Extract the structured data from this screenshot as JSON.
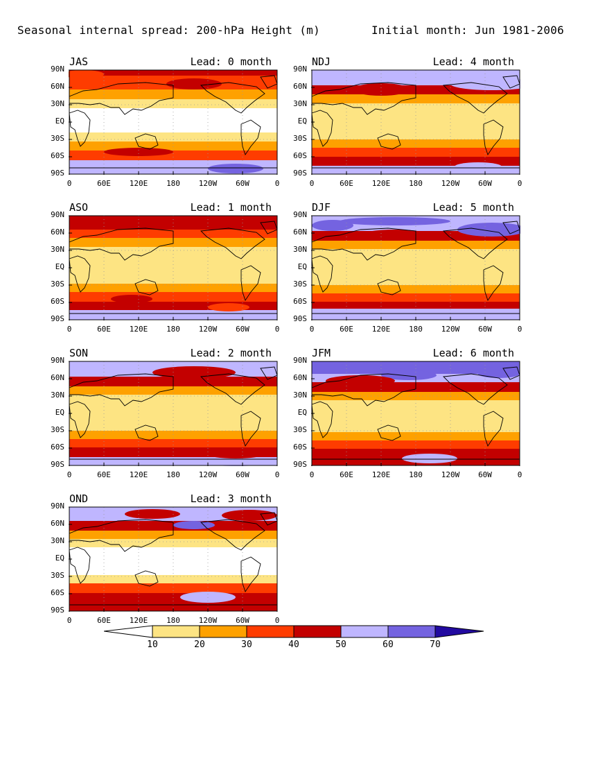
{
  "title_left": "Seasonal internal spread: 200-hPa Height (m)",
  "title_right": "Initial month: Jun 1981-2006",
  "lead_format": "Lead: {n} month",
  "y_ticks": [
    "90N",
    "60N",
    "30N",
    "EQ",
    "30S",
    "60S",
    "90S"
  ],
  "x_ticks": [
    "0",
    "60E",
    "120E",
    "180",
    "120W",
    "60W",
    "0"
  ],
  "colors": {
    "lt10": "#ffffff",
    "c10_20": "#fde483",
    "c20_30": "#fea100",
    "c30_40": "#fe3c00",
    "c40_50": "#c30000",
    "c50_60": "#bfb6ff",
    "c60_70": "#7463e0",
    "gt70": "#220aa0",
    "coast": "#000000",
    "grid": "#999999"
  },
  "colorbar": {
    "levels": [
      "10",
      "20",
      "30",
      "40",
      "50",
      "60",
      "70"
    ]
  },
  "panels": [
    {
      "season": "JAS",
      "lead": "0"
    },
    {
      "season": "NDJ",
      "lead": "4"
    },
    {
      "season": "ASO",
      "lead": "1"
    },
    {
      "season": "DJF",
      "lead": "5"
    },
    {
      "season": "SON",
      "lead": "2"
    },
    {
      "season": "JFM",
      "lead": "6"
    },
    {
      "season": "OND",
      "lead": "3"
    }
  ]
}
